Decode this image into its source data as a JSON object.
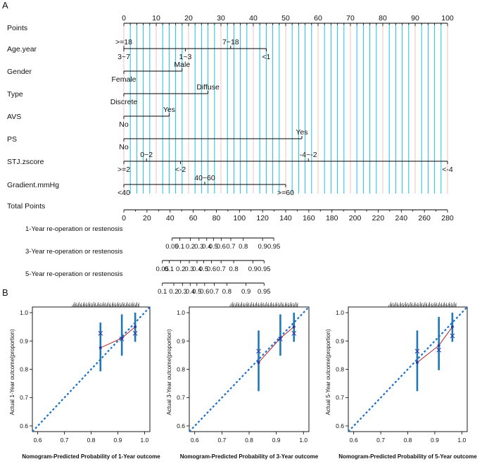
{
  "panels": {
    "a": "A",
    "b": "B"
  },
  "colors": {
    "axis": "#000000",
    "gridCyan": "#33c6dd",
    "gridPink": "#f3b9bd",
    "ideal": "#1a6fc9",
    "bar": "#1f77b4",
    "curve": "#b22222",
    "marker": "#2a3aa8"
  },
  "chart_data": [
    {
      "type": "nomogram",
      "points_axis": {
        "label": "Points",
        "ticks": [
          0,
          10,
          20,
          30,
          40,
          50,
          60,
          70,
          80,
          90,
          100
        ],
        "range": [
          0,
          100
        ],
        "minor_step": 2
      },
      "variables": [
        {
          "name": "Age.year",
          "line": [
            0,
            44
          ],
          "levels": [
            {
              "label": ">=18",
              "value": 0,
              "side": "up"
            },
            {
              "label": "7~18",
              "value": 33,
              "side": "up"
            },
            {
              "label": "3~7",
              "value": 0,
              "side": "down"
            },
            {
              "label": "1~3",
              "value": 19,
              "side": "down"
            },
            {
              "label": "<1",
              "value": 44,
              "side": "down"
            }
          ]
        },
        {
          "name": "Gender",
          "line": [
            0,
            18
          ],
          "levels": [
            {
              "label": "Male",
              "value": 18,
              "side": "up"
            },
            {
              "label": "Female",
              "value": 0,
              "side": "down"
            }
          ]
        },
        {
          "name": "Type",
          "line": [
            0,
            26
          ],
          "levels": [
            {
              "label": "Diffuse",
              "value": 26,
              "side": "up"
            },
            {
              "label": "Discrete",
              "value": 0,
              "side": "down"
            }
          ]
        },
        {
          "name": "AVS",
          "line": [
            0,
            14
          ],
          "levels": [
            {
              "label": "Yes",
              "value": 14,
              "side": "up"
            },
            {
              "label": "No",
              "value": 0,
              "side": "down"
            }
          ]
        },
        {
          "name": "PS",
          "line": [
            0,
            55
          ],
          "levels": [
            {
              "label": "Yes",
              "value": 55,
              "side": "up"
            },
            {
              "label": "No",
              "value": 0,
              "side": "down"
            }
          ]
        },
        {
          "name": "STJ.zscore",
          "line": [
            0,
            100
          ],
          "levels": [
            {
              "label": "0~2",
              "value": 7,
              "side": "up"
            },
            {
              "label": "-4~-2",
              "value": 57,
              "side": "up"
            },
            {
              "label": ">=2",
              "value": 0,
              "side": "down"
            },
            {
              "label": "<-2",
              "value": 17.5,
              "side": "down"
            },
            {
              "label": "<-4",
              "value": 100,
              "side": "down"
            }
          ]
        },
        {
          "name": "Gradient.mmHg",
          "line": [
            0,
            50
          ],
          "levels": [
            {
              "label": "40~60",
              "value": 25,
              "side": "up"
            },
            {
              "label": "<40",
              "value": 0,
              "side": "down"
            },
            {
              "label": ">=60",
              "value": 50,
              "side": "down"
            }
          ]
        }
      ],
      "total_points": {
        "label": "Total Points",
        "ticks": [
          0,
          20,
          40,
          60,
          80,
          100,
          120,
          140,
          160,
          180,
          200,
          220,
          240,
          260,
          280
        ],
        "range": [
          0,
          280
        ],
        "minor_step": 10
      },
      "outcome_axes": [
        {
          "label": "1-Year re-operation or restenosis",
          "line": [
            41.7,
            129.7
          ],
          "ticks": [
            {
              "label": "0.05",
              "points": 41.7
            },
            {
              "label": "0.1",
              "points": 48.4
            },
            {
              "label": "0.2",
              "points": 57.5
            },
            {
              "label": "0.3",
              "points": 65.0
            },
            {
              "label": "0.4",
              "points": 71.7
            },
            {
              "label": "0.5",
              "points": 77.5
            },
            {
              "label": "0.6",
              "points": 84.2
            },
            {
              "label": "0.7",
              "points": 92.5
            },
            {
              "label": "0.8",
              "points": 103.3
            },
            {
              "label": "0.9",
              "points": 120.0
            },
            {
              "label": "0.95",
              "points": 129.7
            }
          ]
        },
        {
          "label": "3-Year re-operation or restenosis",
          "line": [
            33.3,
            121.3
          ],
          "ticks": [
            {
              "label": "0.05",
              "points": 33.3
            },
            {
              "label": "0.1",
              "points": 39.2
            },
            {
              "label": "0.2",
              "points": 49.1
            },
            {
              "label": "0.3",
              "points": 56.6
            },
            {
              "label": "0.4",
              "points": 63.3
            },
            {
              "label": "0.5",
              "points": 69.1
            },
            {
              "label": "0.6",
              "points": 75.8
            },
            {
              "label": "0.7",
              "points": 84.1
            },
            {
              "label": "0.8",
              "points": 95.0
            },
            {
              "label": "0.9",
              "points": 111.6
            },
            {
              "label": "0.95",
              "points": 121.3
            }
          ]
        },
        {
          "label": "5-Year re-operation or restenosis",
          "line": [
            33.3,
            121.3
          ],
          "ticks": [
            {
              "label": "0.1",
              "points": 33.3
            },
            {
              "label": "0.2",
              "points": 43.2
            },
            {
              "label": "0.3",
              "points": 50.7
            },
            {
              "label": "0.4",
              "points": 57.4
            },
            {
              "label": "0.5",
              "points": 63.2
            },
            {
              "label": "0.6",
              "points": 69.9
            },
            {
              "label": "0.7",
              "points": 78.2
            },
            {
              "label": "0.8",
              "points": 89.1
            },
            {
              "label": "0.9",
              "points": 105.7
            },
            {
              "label": "0.95",
              "points": 121.3
            }
          ]
        }
      ]
    },
    {
      "type": "calibration",
      "xlabel": "Nomogram-Predicted Probability of 1-Year outcome",
      "ylabel": "Actual 1-Year outcome(proportion)",
      "xlim": [
        0.58,
        1.02
      ],
      "ylim": [
        0.58,
        1.02
      ],
      "xticks": [
        "0.6",
        "0.7",
        "0.8",
        "0.9",
        "1.0"
      ],
      "yticks": [
        "0.6",
        "0.7",
        "0.8",
        "0.9",
        "1.0"
      ],
      "points": [
        {
          "x": 0.835,
          "y": 0.876,
          "lo": 0.793,
          "hi": 0.965,
          "cross": 0.927
        },
        {
          "x": 0.915,
          "y": 0.91,
          "lo": 0.848,
          "hi": 0.994,
          "cross": 0.907
        },
        {
          "x": 0.965,
          "y": 0.95,
          "lo": 0.897,
          "hi": 1.0,
          "cross": 0.927
        }
      ]
    },
    {
      "type": "calibration",
      "xlabel": "Nomogram-Predicted Probability of 3-Year outcome",
      "ylabel": "Actual 3-Year outcome(proportion)",
      "xlim": [
        0.58,
        1.02
      ],
      "ylim": [
        0.58,
        1.02
      ],
      "xticks": [
        "0.6",
        "0.7",
        "0.8",
        "0.9",
        "1.0"
      ],
      "yticks": [
        "0.6",
        "0.7",
        "0.8",
        "0.9",
        "1.0"
      ],
      "points": [
        {
          "x": 0.835,
          "y": 0.824,
          "lo": 0.723,
          "hi": 0.937,
          "cross": 0.864
        },
        {
          "x": 0.915,
          "y": 0.91,
          "lo": 0.848,
          "hi": 0.994,
          "cross": 0.907
        },
        {
          "x": 0.965,
          "y": 0.95,
          "lo": 0.897,
          "hi": 1.0,
          "cross": 0.927
        }
      ]
    },
    {
      "type": "calibration",
      "xlabel": "Nomogram-Predicted Probability of 5-Year outcome",
      "ylabel": "Actual 5-Year outcome(proportion)",
      "xlim": [
        0.58,
        1.02
      ],
      "ylim": [
        0.58,
        1.02
      ],
      "xticks": [
        "0.6",
        "0.7",
        "0.8",
        "0.9",
        "1.0"
      ],
      "yticks": [
        "0.6",
        "0.7",
        "0.8",
        "0.9",
        "1.0"
      ],
      "points": [
        {
          "x": 0.835,
          "y": 0.824,
          "lo": 0.723,
          "hi": 0.937,
          "cross": 0.864
        },
        {
          "x": 0.915,
          "y": 0.884,
          "lo": 0.797,
          "hi": 0.985,
          "cross": 0.868
        },
        {
          "x": 0.965,
          "y": 0.95,
          "lo": 0.897,
          "hi": 1.0,
          "cross": 0.918
        }
      ]
    }
  ]
}
